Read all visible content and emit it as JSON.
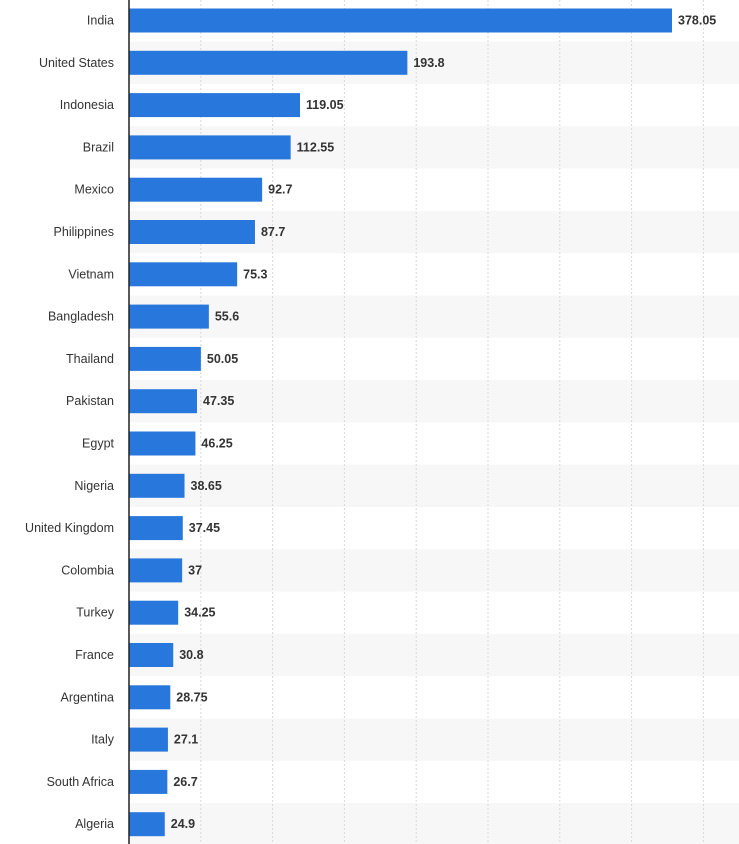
{
  "chart_data": {
    "type": "bar",
    "orientation": "horizontal",
    "title": "",
    "xlabel": "",
    "ylabel": "",
    "categories": [
      "India",
      "United States",
      "Indonesia",
      "Brazil",
      "Mexico",
      "Philippines",
      "Vietnam",
      "Bangladesh",
      "Thailand",
      "Pakistan",
      "Egypt",
      "Nigeria",
      "United Kingdom",
      "Colombia",
      "Turkey",
      "France",
      "Argentina",
      "Italy",
      "South Africa",
      "Algeria"
    ],
    "values": [
      378.05,
      193.8,
      119.05,
      112.55,
      92.7,
      87.7,
      75.3,
      55.6,
      50.05,
      47.35,
      46.25,
      38.65,
      37.45,
      37,
      34.25,
      30.8,
      28.75,
      27.1,
      26.7,
      24.9
    ],
    "value_labels": [
      "378.05",
      "193.8",
      "119.05",
      "112.55",
      "92.7",
      "87.7",
      "75.3",
      "55.6",
      "50.05",
      "47.35",
      "46.25",
      "38.65",
      "37.45",
      "37",
      "34.25",
      "30.8",
      "28.75",
      "27.1",
      "26.7",
      "24.9"
    ],
    "xlim": [
      0,
      425
    ],
    "grid": true,
    "legend": "none",
    "colors": {
      "bar": "#2877dc",
      "grid": "#d8d8d8",
      "axis": "#222222",
      "alt_row": "#f7f7f7",
      "text": "#333333"
    }
  }
}
